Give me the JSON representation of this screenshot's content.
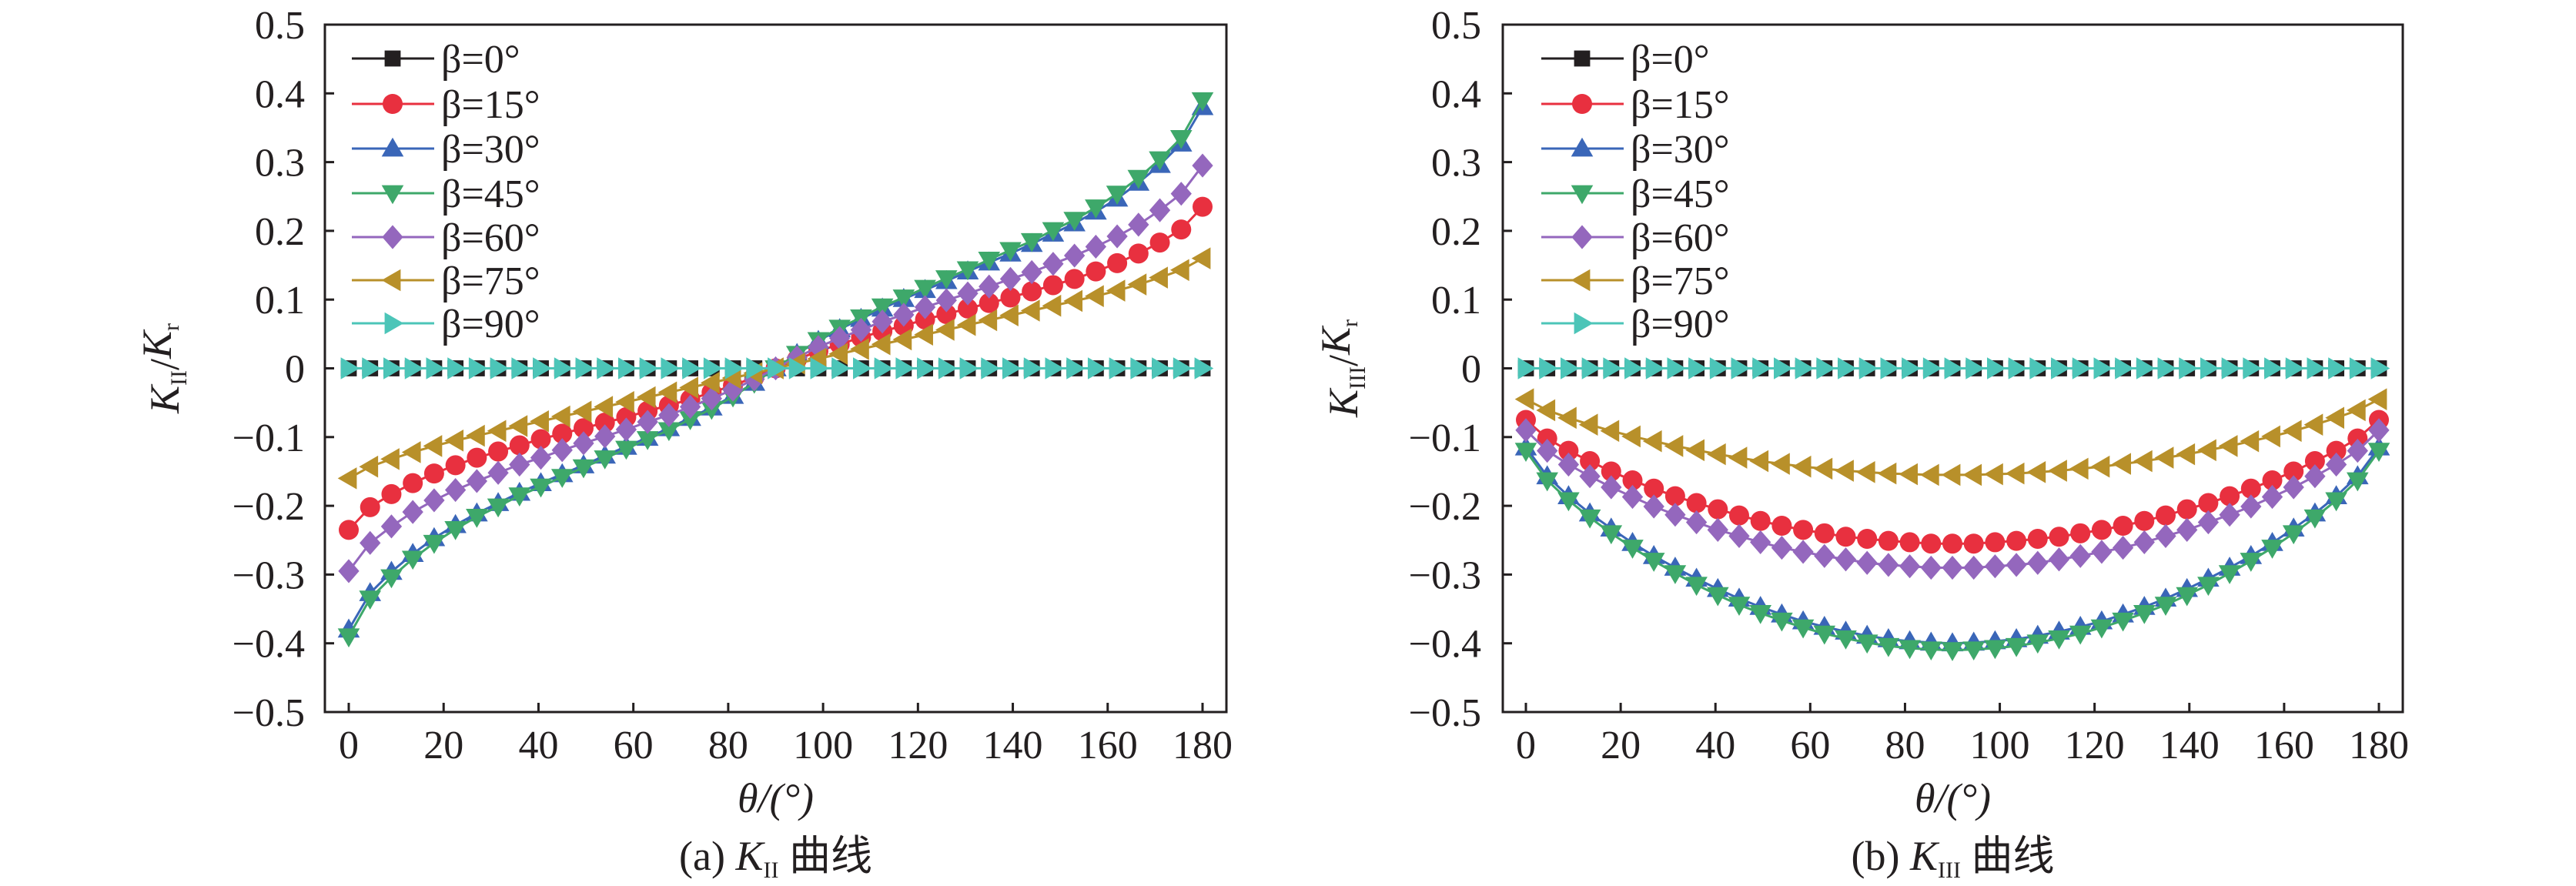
{
  "chart_data": [
    {
      "type": "line",
      "caption": {
        "prefix": "(a) ",
        "k": "K",
        "sub": "II",
        "suffix": " 曲线"
      },
      "ylabel": {
        "k": "K",
        "sub": "II",
        "slash": "/",
        "k2": "K",
        "sub2": "r"
      },
      "xlabel": "θ/(°)",
      "xlim": [
        0,
        180
      ],
      "ylim": [
        -0.5,
        0.5
      ],
      "xticks": [
        "0",
        "20",
        "40",
        "60",
        "80",
        "100",
        "120",
        "140",
        "160",
        "180"
      ],
      "yticks": [
        "−0.5",
        "−0.4",
        "−0.3",
        "−0.2",
        "−0.1",
        "0",
        "0.1",
        "0.2",
        "0.3",
        "0.4",
        "0.5"
      ],
      "legend_position": "top-left",
      "x": [
        0,
        4.5,
        9,
        13.5,
        18,
        22.5,
        27,
        31.5,
        36,
        40.5,
        45,
        49.5,
        54,
        58.5,
        63,
        67.5,
        72,
        76.5,
        81,
        85.5,
        90,
        94.5,
        99,
        103.5,
        108,
        112.5,
        117,
        121.5,
        126,
        130.5,
        135,
        139.5,
        144,
        148.5,
        153,
        157.5,
        162,
        166.5,
        171,
        175.5,
        180
      ],
      "series": [
        {
          "name": "β=0°",
          "color": "#231f20",
          "marker": "square",
          "values": [
            0,
            0,
            0,
            0,
            0,
            0,
            0,
            0,
            0,
            0,
            0,
            0,
            0,
            0,
            0,
            0,
            0,
            0,
            0,
            0,
            0,
            0,
            0,
            0,
            0,
            0,
            0,
            0,
            0,
            0,
            0,
            0,
            0,
            0,
            0,
            0,
            0,
            0,
            0,
            0,
            0
          ]
        },
        {
          "name": "β=15°",
          "color": "#e8303f",
          "marker": "circle",
          "values": [
            -0.235,
            -0.202,
            -0.183,
            -0.167,
            -0.153,
            -0.141,
            -0.13,
            -0.121,
            -0.112,
            -0.103,
            -0.095,
            -0.087,
            -0.079,
            -0.071,
            -0.062,
            -0.054,
            -0.045,
            -0.035,
            -0.025,
            -0.013,
            0,
            0.013,
            0.025,
            0.035,
            0.045,
            0.054,
            0.062,
            0.071,
            0.079,
            0.087,
            0.095,
            0.103,
            0.112,
            0.121,
            0.13,
            0.141,
            0.153,
            0.167,
            0.183,
            0.202,
            0.235
          ]
        },
        {
          "name": "β=30°",
          "color": "#3a66b8",
          "marker": "triangle-up",
          "values": [
            -0.38,
            -0.327,
            -0.296,
            -0.27,
            -0.247,
            -0.228,
            -0.211,
            -0.196,
            -0.181,
            -0.167,
            -0.154,
            -0.141,
            -0.127,
            -0.114,
            -0.101,
            -0.087,
            -0.072,
            -0.057,
            -0.04,
            -0.021,
            0,
            0.021,
            0.04,
            0.057,
            0.072,
            0.087,
            0.101,
            0.114,
            0.127,
            0.141,
            0.154,
            0.167,
            0.181,
            0.196,
            0.211,
            0.228,
            0.247,
            0.27,
            0.296,
            0.327,
            0.38
          ]
        },
        {
          "name": "β=45°",
          "color": "#3ea86a",
          "marker": "triangle-down",
          "values": [
            -0.39,
            -0.335,
            -0.304,
            -0.277,
            -0.254,
            -0.234,
            -0.216,
            -0.201,
            -0.185,
            -0.172,
            -0.158,
            -0.144,
            -0.131,
            -0.117,
            -0.103,
            -0.09,
            -0.074,
            -0.059,
            -0.041,
            -0.021,
            0,
            0.021,
            0.041,
            0.059,
            0.074,
            0.09,
            0.103,
            0.117,
            0.131,
            0.144,
            0.158,
            0.172,
            0.185,
            0.201,
            0.216,
            0.234,
            0.254,
            0.277,
            0.304,
            0.335,
            0.39
          ]
        },
        {
          "name": "β=60°",
          "color": "#9467bd",
          "marker": "diamond",
          "values": [
            -0.295,
            -0.254,
            -0.23,
            -0.209,
            -0.192,
            -0.177,
            -0.164,
            -0.152,
            -0.14,
            -0.13,
            -0.119,
            -0.109,
            -0.099,
            -0.089,
            -0.078,
            -0.068,
            -0.056,
            -0.044,
            -0.031,
            -0.016,
            0,
            0.016,
            0.031,
            0.044,
            0.056,
            0.068,
            0.078,
            0.089,
            0.099,
            0.109,
            0.119,
            0.13,
            0.14,
            0.152,
            0.164,
            0.177,
            0.192,
            0.209,
            0.23,
            0.254,
            0.295
          ]
        },
        {
          "name": "β=75°",
          "color": "#b8902a",
          "marker": "triangle-left",
          "values": [
            -0.16,
            -0.143,
            -0.132,
            -0.122,
            -0.113,
            -0.105,
            -0.098,
            -0.091,
            -0.084,
            -0.077,
            -0.07,
            -0.063,
            -0.056,
            -0.049,
            -0.042,
            -0.035,
            -0.028,
            -0.021,
            -0.014,
            -0.007,
            0,
            0.007,
            0.014,
            0.021,
            0.028,
            0.035,
            0.042,
            0.049,
            0.056,
            0.063,
            0.07,
            0.077,
            0.084,
            0.091,
            0.098,
            0.105,
            0.113,
            0.122,
            0.132,
            0.143,
            0.16
          ]
        },
        {
          "name": "β=90°",
          "color": "#4cc5b8",
          "marker": "triangle-right",
          "values": [
            0,
            0,
            0,
            0,
            0,
            0,
            0,
            0,
            0,
            0,
            0,
            0,
            0,
            0,
            0,
            0,
            0,
            0,
            0,
            0,
            0,
            0,
            0,
            0,
            0,
            0,
            0,
            0,
            0,
            0,
            0,
            0,
            0,
            0,
            0,
            0,
            0,
            0,
            0,
            0,
            0
          ]
        }
      ]
    },
    {
      "type": "line",
      "caption": {
        "prefix": "(b) ",
        "k": "K",
        "sub": "III",
        "suffix": " 曲线"
      },
      "ylabel": {
        "k": "K",
        "sub": "III",
        "slash": "/",
        "k2": "K",
        "sub2": "r"
      },
      "xlabel": "θ/(°)",
      "xlim": [
        0,
        180
      ],
      "ylim": [
        -0.5,
        0.5
      ],
      "xticks": [
        "0",
        "20",
        "40",
        "60",
        "80",
        "100",
        "120",
        "140",
        "160",
        "180"
      ],
      "yticks": [
        "−0.5",
        "−0.4",
        "−0.3",
        "−0.2",
        "−0.1",
        "0",
        "0.1",
        "0.2",
        "0.3",
        "0.4",
        "0.5"
      ],
      "legend_position": "top-left",
      "x": [
        0,
        4.5,
        9,
        13.5,
        18,
        22.5,
        27,
        31.5,
        36,
        40.5,
        45,
        49.5,
        54,
        58.5,
        63,
        67.5,
        72,
        76.5,
        81,
        85.5,
        90,
        94.5,
        99,
        103.5,
        108,
        112.5,
        117,
        121.5,
        126,
        130.5,
        135,
        139.5,
        144,
        148.5,
        153,
        157.5,
        162,
        166.5,
        171,
        175.5,
        180
      ],
      "series": [
        {
          "name": "β=0°",
          "color": "#231f20",
          "marker": "square",
          "values": [
            0,
            0,
            0,
            0,
            0,
            0,
            0,
            0,
            0,
            0,
            0,
            0,
            0,
            0,
            0,
            0,
            0,
            0,
            0,
            0,
            0,
            0,
            0,
            0,
            0,
            0,
            0,
            0,
            0,
            0,
            0,
            0,
            0,
            0,
            0,
            0,
            0,
            0,
            0,
            0,
            0
          ]
        },
        {
          "name": "β=15°",
          "color": "#e8303f",
          "marker": "circle",
          "values": [
            -0.075,
            -0.102,
            -0.12,
            -0.135,
            -0.15,
            -0.163,
            -0.175,
            -0.186,
            -0.196,
            -0.205,
            -0.214,
            -0.222,
            -0.229,
            -0.235,
            -0.24,
            -0.245,
            -0.248,
            -0.251,
            -0.253,
            -0.255,
            -0.255,
            -0.255,
            -0.253,
            -0.251,
            -0.248,
            -0.245,
            -0.24,
            -0.235,
            -0.229,
            -0.222,
            -0.214,
            -0.205,
            -0.196,
            -0.186,
            -0.175,
            -0.163,
            -0.15,
            -0.135,
            -0.12,
            -0.102,
            -0.075
          ]
        },
        {
          "name": "β=30°",
          "color": "#3a66b8",
          "marker": "triangle-up",
          "values": [
            -0.115,
            -0.157,
            -0.186,
            -0.211,
            -0.233,
            -0.254,
            -0.273,
            -0.29,
            -0.306,
            -0.321,
            -0.335,
            -0.347,
            -0.358,
            -0.368,
            -0.376,
            -0.383,
            -0.389,
            -0.394,
            -0.397,
            -0.399,
            -0.4,
            -0.399,
            -0.397,
            -0.394,
            -0.389,
            -0.383,
            -0.376,
            -0.368,
            -0.358,
            -0.347,
            -0.335,
            -0.321,
            -0.306,
            -0.29,
            -0.273,
            -0.254,
            -0.233,
            -0.211,
            -0.186,
            -0.157,
            -0.115
          ]
        },
        {
          "name": "β=45°",
          "color": "#3ea86a",
          "marker": "triangle-down",
          "values": [
            -0.12,
            -0.163,
            -0.192,
            -0.217,
            -0.24,
            -0.261,
            -0.28,
            -0.298,
            -0.315,
            -0.33,
            -0.344,
            -0.356,
            -0.367,
            -0.377,
            -0.386,
            -0.393,
            -0.399,
            -0.404,
            -0.407,
            -0.409,
            -0.41,
            -0.409,
            -0.407,
            -0.404,
            -0.399,
            -0.393,
            -0.386,
            -0.377,
            -0.367,
            -0.356,
            -0.344,
            -0.33,
            -0.315,
            -0.298,
            -0.28,
            -0.261,
            -0.24,
            -0.217,
            -0.192,
            -0.163,
            -0.12
          ]
        },
        {
          "name": "β=60°",
          "color": "#9467bd",
          "marker": "diamond",
          "values": [
            -0.09,
            -0.12,
            -0.14,
            -0.157,
            -0.173,
            -0.187,
            -0.201,
            -0.213,
            -0.224,
            -0.235,
            -0.244,
            -0.253,
            -0.261,
            -0.267,
            -0.273,
            -0.278,
            -0.283,
            -0.286,
            -0.288,
            -0.29,
            -0.29,
            -0.29,
            -0.288,
            -0.286,
            -0.283,
            -0.278,
            -0.273,
            -0.267,
            -0.261,
            -0.253,
            -0.244,
            -0.235,
            -0.224,
            -0.213,
            -0.201,
            -0.187,
            -0.173,
            -0.157,
            -0.14,
            -0.12,
            -0.09
          ]
        },
        {
          "name": "β=75°",
          "color": "#b8902a",
          "marker": "triangle-left",
          "values": [
            -0.045,
            -0.061,
            -0.072,
            -0.082,
            -0.091,
            -0.099,
            -0.106,
            -0.113,
            -0.119,
            -0.125,
            -0.13,
            -0.135,
            -0.139,
            -0.143,
            -0.146,
            -0.149,
            -0.151,
            -0.153,
            -0.154,
            -0.155,
            -0.155,
            -0.155,
            -0.154,
            -0.153,
            -0.151,
            -0.149,
            -0.146,
            -0.143,
            -0.139,
            -0.135,
            -0.13,
            -0.125,
            -0.119,
            -0.113,
            -0.106,
            -0.099,
            -0.091,
            -0.082,
            -0.072,
            -0.061,
            -0.045
          ]
        },
        {
          "name": "β=90°",
          "color": "#4cc5b8",
          "marker": "triangle-right",
          "values": [
            0,
            0,
            0,
            0,
            0,
            0,
            0,
            0,
            0,
            0,
            0,
            0,
            0,
            0,
            0,
            0,
            0,
            0,
            0,
            0,
            0,
            0,
            0,
            0,
            0,
            0,
            0,
            0,
            0,
            0,
            0,
            0,
            0,
            0,
            0,
            0,
            0,
            0,
            0,
            0,
            0
          ]
        }
      ]
    }
  ]
}
